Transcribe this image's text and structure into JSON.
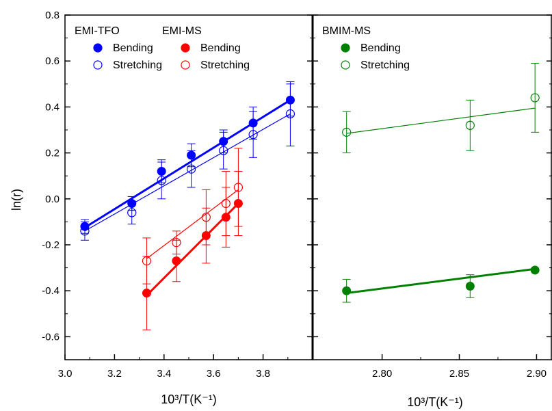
{
  "chart_data": [
    {
      "type": "scatter",
      "title": "",
      "xlabel": "10³/T(K⁻¹)",
      "ylabel": "ln(r)",
      "xlim": [
        3.0,
        4.0
      ],
      "ylim": [
        -0.7,
        0.8
      ],
      "xticks": [
        3.0,
        3.2,
        3.4,
        3.6,
        3.8
      ],
      "xtick_labels": [
        "3.0",
        "3.2",
        "3.4",
        "3.6",
        "3.8"
      ],
      "yticks": [
        -0.6,
        -0.4,
        -0.2,
        0.0,
        0.2,
        0.4,
        0.6,
        0.8
      ],
      "ytick_labels": [
        "-0.6",
        "-0.4",
        "-0.2",
        "0.0",
        "0.2",
        "0.4",
        "0.6",
        "0.8"
      ],
      "legend_position": "top-left",
      "legend_groups": [
        {
          "title": "EMI-TFO",
          "entries": [
            "Bending",
            "Stretching"
          ]
        },
        {
          "title": "EMI-MS",
          "entries": [
            "Bending",
            "Stretching"
          ]
        }
      ],
      "series": [
        {
          "name": "EMI-TFO Bending",
          "color": "#0000ff",
          "marker": "filled",
          "x": [
            3.08,
            3.27,
            3.39,
            3.51,
            3.64,
            3.76,
            3.91
          ],
          "y": [
            -0.12,
            -0.02,
            0.12,
            0.19,
            0.25,
            0.33,
            0.43
          ],
          "err": [
            0.03,
            0.03,
            0.05,
            0.05,
            0.05,
            0.07,
            0.07
          ],
          "fit": {
            "x": [
              3.08,
              3.91
            ],
            "y": [
              -0.125,
              0.43
            ]
          }
        },
        {
          "name": "EMI-TFO Stretching",
          "color": "#0000ff",
          "marker": "open",
          "x": [
            3.08,
            3.27,
            3.39,
            3.51,
            3.64,
            3.76,
            3.91
          ],
          "y": [
            -0.14,
            -0.06,
            0.08,
            0.13,
            0.21,
            0.28,
            0.37
          ],
          "err": [
            0.04,
            0.05,
            0.08,
            0.08,
            0.08,
            0.1,
            0.14
          ],
          "fit": {
            "x": [
              3.08,
              3.91
            ],
            "y": [
              -0.14,
              0.37
            ]
          }
        },
        {
          "name": "EMI-MS Bending",
          "color": "#ff0000",
          "marker": "filled",
          "x": [
            3.33,
            3.45,
            3.57,
            3.65,
            3.7
          ],
          "y": [
            -0.41,
            -0.27,
            -0.16,
            -0.08,
            -0.02
          ],
          "err": [
            0.16,
            0.09,
            0.12,
            0.13,
            0.14
          ],
          "fit": {
            "x": [
              3.33,
              3.7
            ],
            "y": [
              -0.42,
              -0.02
            ]
          }
        },
        {
          "name": "EMI-MS Stretching",
          "color": "#ff0000",
          "marker": "open",
          "x": [
            3.33,
            3.45,
            3.57,
            3.65,
            3.7
          ],
          "y": [
            -0.27,
            -0.19,
            -0.08,
            -0.02,
            0.05
          ],
          "err": [
            0.1,
            0.05,
            0.12,
            0.14,
            0.17
          ],
          "fit": {
            "x": [
              3.33,
              3.7
            ],
            "y": [
              -0.26,
              0.04
            ]
          }
        }
      ]
    },
    {
      "type": "scatter",
      "title": "",
      "xlabel": "10³/T(K⁻¹)",
      "ylabel": "",
      "xlim": [
        2.755,
        2.91
      ],
      "ylim": [
        -0.7,
        0.8
      ],
      "xticks": [
        2.8,
        2.85,
        2.9
      ],
      "xtick_labels": [
        "2.80",
        "2.85",
        "2.90"
      ],
      "yticks": [
        -0.6,
        -0.4,
        -0.2,
        0.0,
        0.2,
        0.4,
        0.6,
        0.8
      ],
      "legend_position": "top-left",
      "legend_groups": [
        {
          "title": "BMIM-MS",
          "entries": [
            "Bending",
            "Stretching"
          ]
        }
      ],
      "series": [
        {
          "name": "BMIM-MS Bending",
          "color": "#008000",
          "marker": "filled",
          "x": [
            2.777,
            2.857,
            2.899
          ],
          "y": [
            -0.4,
            -0.38,
            -0.31
          ],
          "err": [
            0.05,
            0.05,
            0.0
          ],
          "fit": {
            "x": [
              2.777,
              2.899
            ],
            "y": [
              -0.41,
              -0.305
            ]
          }
        },
        {
          "name": "BMIM-MS Stretching",
          "color": "#008000",
          "marker": "open",
          "x": [
            2.777,
            2.857,
            2.899
          ],
          "y": [
            0.29,
            0.32,
            0.44
          ],
          "err": [
            0.09,
            0.11,
            0.15
          ],
          "fit": {
            "x": [
              2.777,
              2.899
            ],
            "y": [
              0.285,
              0.395
            ]
          }
        }
      ]
    }
  ]
}
